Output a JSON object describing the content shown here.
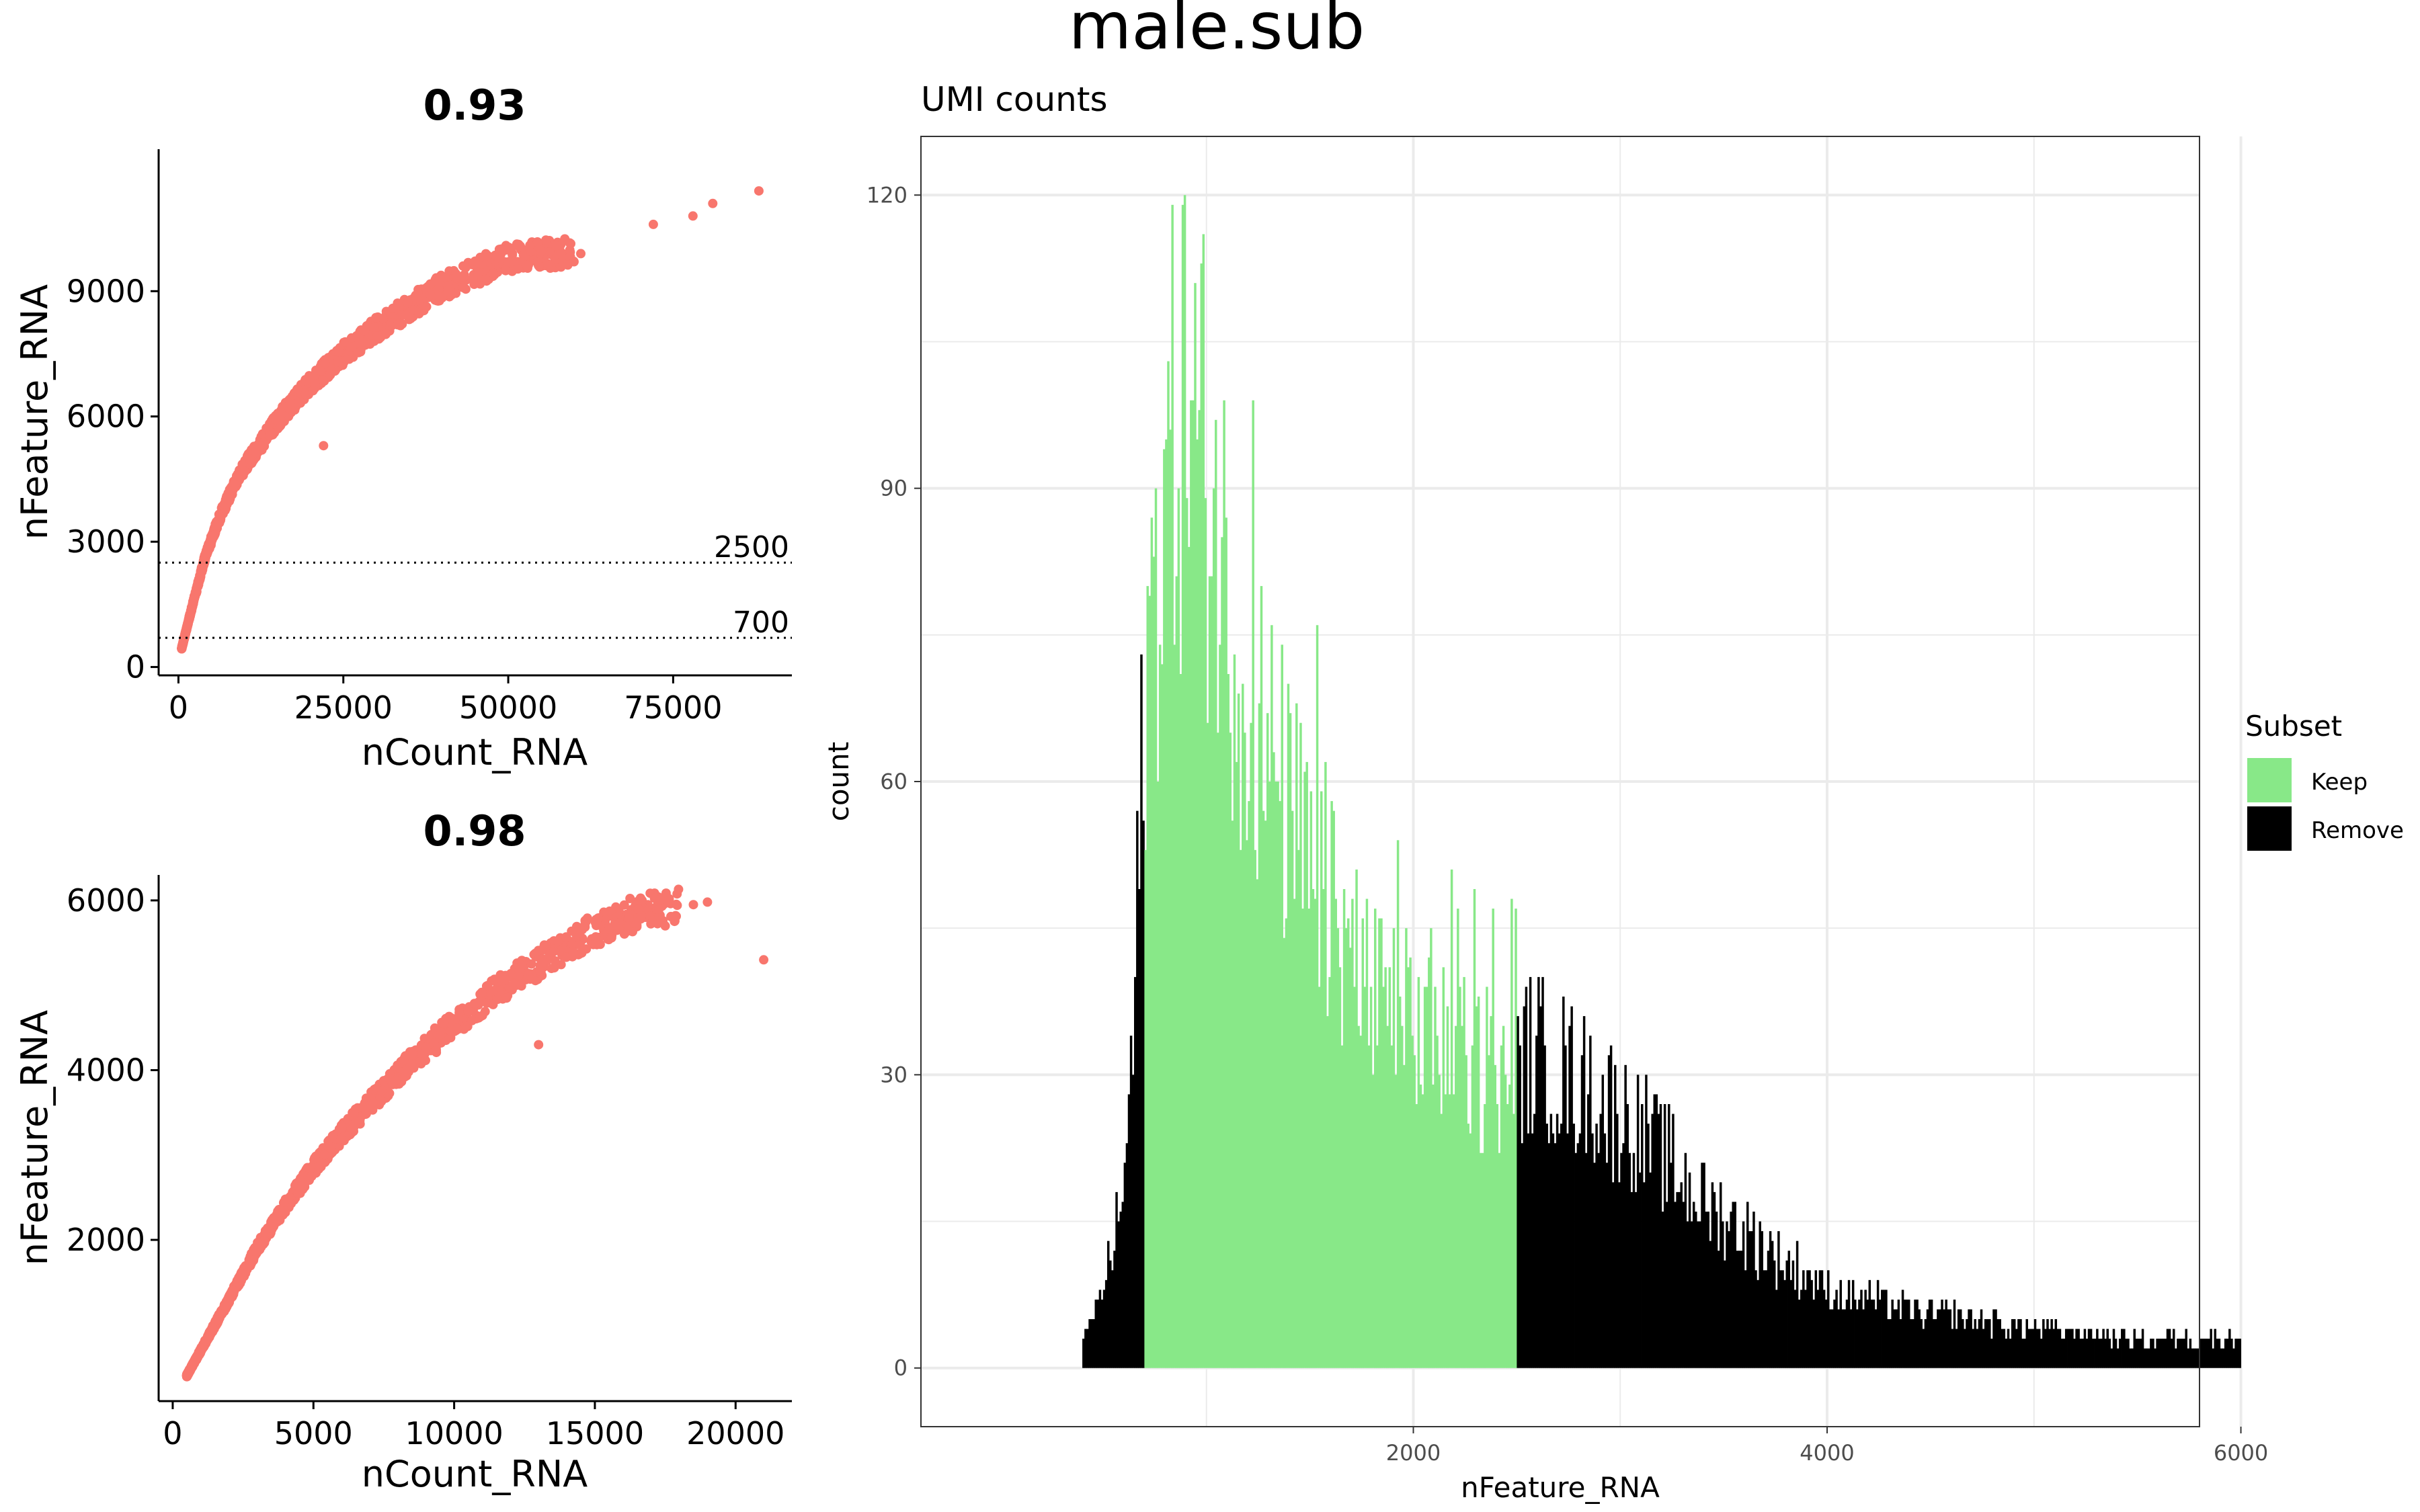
{
  "figure_title": "male.sub",
  "colors": {
    "point": "#F8766D",
    "keep": "#88E888",
    "remove": "#000000",
    "grid": "#EBEBEB",
    "axis": "#000000"
  },
  "chart_data": [
    {
      "type": "scatter",
      "title": "0.93",
      "xlabel": "nCount_RNA",
      "ylabel": "nFeature_RNA",
      "xlim": [
        -3000,
        93000
      ],
      "ylim": [
        -200,
        12400
      ],
      "xticks": [
        0,
        25000,
        50000,
        75000
      ],
      "xtick_labels": [
        "0",
        "25000",
        "50000",
        "75000"
      ],
      "yticks": [
        0,
        3000,
        6000,
        9000
      ],
      "ytick_labels": [
        "0",
        "3000",
        "6000",
        "9000"
      ],
      "hlines": [
        {
          "y": 2500,
          "label": "2500",
          "style": "dotted"
        },
        {
          "y": 700,
          "label": "700",
          "style": "dotted"
        }
      ],
      "trend_points": [
        [
          500,
          450
        ],
        [
          2000,
          1400
        ],
        [
          4000,
          2600
        ],
        [
          6000,
          3500
        ],
        [
          8000,
          4200
        ],
        [
          10000,
          4800
        ],
        [
          15000,
          5900
        ],
        [
          20000,
          6800
        ],
        [
          25000,
          7500
        ],
        [
          30000,
          8100
        ],
        [
          40000,
          9100
        ],
        [
          50000,
          9800
        ],
        [
          60000,
          9950
        ]
      ],
      "outliers": [
        [
          72000,
          10600
        ],
        [
          78000,
          10800
        ],
        [
          81000,
          11100
        ],
        [
          88000,
          11400
        ],
        [
          61000,
          9900
        ],
        [
          55000,
          9950
        ],
        [
          50000,
          10000
        ],
        [
          22000,
          5300
        ]
      ]
    },
    {
      "type": "scatter",
      "title": "0.98",
      "xlabel": "nCount_RNA",
      "ylabel": "nFeature_RNA",
      "xlim": [
        -500,
        22000
      ],
      "ylim": [
        100,
        6300
      ],
      "xticks": [
        0,
        5000,
        10000,
        15000,
        20000
      ],
      "xtick_labels": [
        "0",
        "5000",
        "10000",
        "15000",
        "20000"
      ],
      "yticks": [
        2000,
        4000,
        6000
      ],
      "ytick_labels": [
        "2000",
        "4000",
        "6000"
      ],
      "trend_points": [
        [
          500,
          400
        ],
        [
          1000,
          700
        ],
        [
          2000,
          1300
        ],
        [
          3000,
          1900
        ],
        [
          4000,
          2400
        ],
        [
          5000,
          2850
        ],
        [
          6000,
          3250
        ],
        [
          7000,
          3600
        ],
        [
          8000,
          3950
        ],
        [
          9000,
          4250
        ],
        [
          10000,
          4550
        ],
        [
          11000,
          4800
        ],
        [
          12000,
          5050
        ],
        [
          13000,
          5250
        ],
        [
          14000,
          5450
        ],
        [
          15000,
          5650
        ],
        [
          16000,
          5800
        ],
        [
          17000,
          5900
        ],
        [
          18000,
          5950
        ]
      ],
      "outliers": [
        [
          21000,
          5300
        ],
        [
          18500,
          5950
        ],
        [
          19000,
          5980
        ],
        [
          13000,
          4300
        ],
        [
          17500,
          5700
        ]
      ]
    },
    {
      "type": "bar",
      "title": "UMI counts",
      "xlabel": "nFeature_RNA",
      "ylabel": "count",
      "xlim": [
        -380,
        5800
      ],
      "ylim": [
        -6,
        126
      ],
      "xticks": [
        2000,
        4000,
        6000
      ],
      "xtick_labels": [
        "2000",
        "4000",
        "6000"
      ],
      "yticks": [
        0,
        30,
        60,
        90,
        120
      ],
      "ytick_labels": [
        "0",
        "30",
        "60",
        "90",
        "120"
      ],
      "bin_start": 400,
      "bin_width": 10,
      "keep_range": [
        700,
        2500
      ],
      "profile": [
        [
          400,
          2
        ],
        [
          500,
          8
        ],
        [
          600,
          18
        ],
        [
          650,
          35
        ],
        [
          700,
          70
        ],
        [
          800,
          90
        ],
        [
          900,
          100
        ],
        [
          1000,
          92
        ],
        [
          1100,
          80
        ],
        [
          1200,
          70
        ],
        [
          1300,
          62
        ],
        [
          1400,
          56
        ],
        [
          1500,
          50
        ],
        [
          1600,
          46
        ],
        [
          1700,
          42
        ],
        [
          1800,
          38
        ],
        [
          1900,
          36
        ],
        [
          2000,
          35
        ],
        [
          2200,
          32
        ],
        [
          2400,
          30
        ],
        [
          2500,
          31
        ],
        [
          2600,
          32
        ],
        [
          2800,
          29
        ],
        [
          3000,
          26
        ],
        [
          3200,
          22
        ],
        [
          3400,
          17
        ],
        [
          3600,
          14
        ],
        [
          3800,
          11
        ],
        [
          4000,
          8
        ],
        [
          4400,
          6
        ],
        [
          5000,
          4
        ],
        [
          5500,
          3
        ],
        [
          6000,
          3
        ]
      ],
      "legend": {
        "title": "Subset",
        "position": "right",
        "items": [
          {
            "label": "Keep",
            "color": "#88E888"
          },
          {
            "label": "Remove",
            "color": "#000000"
          }
        ]
      }
    }
  ]
}
